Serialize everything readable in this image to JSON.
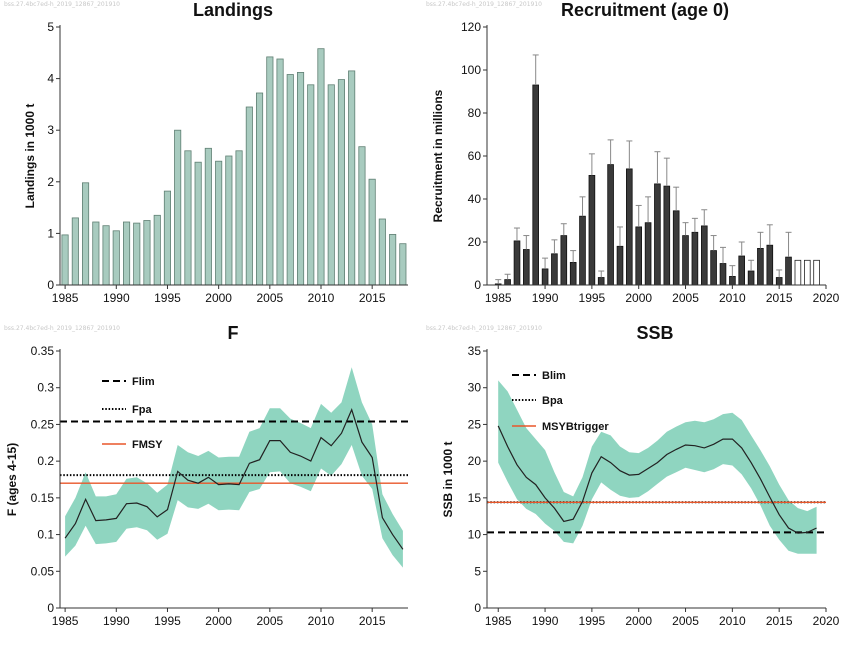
{
  "watermarks": {
    "w1": "bss.27.4bc7ed-h_2019_12867_201910",
    "w2": "bss.27.4bc7ed-h_2019_12867_201910",
    "w3": "bss.27.4bc7ed-h_2019_12867_201910",
    "w4": "bss.27.4bc7ed-h_2019_12867_201910"
  },
  "chart_data": [
    {
      "type": "bar",
      "title": "Landings",
      "xlabel": "",
      "ylabel": "Landings in 1000 t",
      "ylim": [
        0,
        5
      ],
      "yticks": [
        "0",
        "1",
        "2",
        "3",
        "4",
        "5"
      ],
      "xticks": [
        "1985",
        "1990",
        "1995",
        "2000",
        "2005",
        "2010",
        "2015"
      ],
      "color": "#a8cbbf",
      "x": [
        1985,
        1986,
        1987,
        1988,
        1989,
        1990,
        1991,
        1992,
        1993,
        1994,
        1995,
        1996,
        1997,
        1998,
        1999,
        2000,
        2001,
        2002,
        2003,
        2004,
        2005,
        2006,
        2007,
        2008,
        2009,
        2010,
        2011,
        2012,
        2013,
        2014,
        2015,
        2016,
        2017,
        2018
      ],
      "values": [
        0.97,
        1.3,
        1.98,
        1.22,
        1.15,
        1.05,
        1.22,
        1.2,
        1.25,
        1.35,
        1.82,
        3.0,
        2.6,
        2.38,
        2.65,
        2.4,
        2.5,
        2.6,
        3.45,
        3.72,
        4.42,
        4.38,
        4.08,
        4.12,
        3.88,
        4.58,
        3.88,
        3.98,
        4.15,
        2.68,
        2.05,
        1.28,
        0.98,
        0.8
      ]
    },
    {
      "type": "bar",
      "title": "Recruitment (age 0)",
      "xlabel": "",
      "ylabel": "Recruitment in millions",
      "ylim": [
        0,
        120
      ],
      "yticks": [
        "0",
        "20",
        "40",
        "60",
        "80",
        "100",
        "120"
      ],
      "xticks": [
        "1985",
        "1990",
        "1995",
        "2000",
        "2005",
        "2010",
        "2015",
        "2020"
      ],
      "color": "#3a3a3a",
      "x": [
        1985,
        1986,
        1987,
        1988,
        1989,
        1990,
        1991,
        1992,
        1993,
        1994,
        1995,
        1996,
        1997,
        1998,
        1999,
        2000,
        2001,
        2002,
        2003,
        2004,
        2005,
        2006,
        2007,
        2008,
        2009,
        2010,
        2011,
        2012,
        2013,
        2014,
        2015,
        2016,
        2017,
        2018,
        2019
      ],
      "values": [
        0.5,
        2.5,
        20.5,
        16.5,
        93,
        7.5,
        14.5,
        23,
        10.5,
        32,
        51,
        3.5,
        56,
        18,
        54,
        27,
        29,
        47,
        46,
        34.5,
        23,
        24.5,
        27.5,
        16,
        10,
        4,
        13.5,
        6.5,
        17,
        18.5,
        3.5,
        13,
        11.5,
        11.5,
        11.5
      ],
      "upper": [
        2.5,
        5,
        26.5,
        23,
        107,
        12.5,
        21,
        28.5,
        16,
        41,
        61,
        6.5,
        67.5,
        27,
        67,
        37,
        41,
        62,
        59,
        45.5,
        29,
        31,
        35,
        23,
        17.5,
        9,
        20,
        11.5,
        24.5,
        28,
        7,
        24.5,
        null,
        null,
        null
      ],
      "assumed": [
        false,
        false,
        false,
        false,
        false,
        false,
        false,
        false,
        false,
        false,
        false,
        false,
        false,
        false,
        false,
        false,
        false,
        false,
        false,
        false,
        false,
        false,
        false,
        false,
        false,
        false,
        false,
        false,
        false,
        false,
        false,
        false,
        true,
        true,
        true
      ]
    },
    {
      "type": "line",
      "title": "F",
      "xlabel": "",
      "ylabel": "F (ages 4-15)",
      "ylim": [
        0,
        0.35
      ],
      "yticks": [
        "0",
        "0.05",
        "0.1",
        "0.15",
        "0.2",
        "0.25",
        "0.3",
        "0.35"
      ],
      "xticks": [
        "1985",
        "1990",
        "1995",
        "2000",
        "2005",
        "2010",
        "2015"
      ],
      "band_color": "#8fd5c0",
      "x": [
        1985,
        1986,
        1987,
        1988,
        1989,
        1990,
        1991,
        1992,
        1993,
        1994,
        1995,
        1996,
        1997,
        1998,
        1999,
        2000,
        2001,
        2002,
        2003,
        2004,
        2005,
        2006,
        2007,
        2008,
        2009,
        2010,
        2011,
        2012,
        2013,
        2014,
        2015,
        2016,
        2017,
        2018
      ],
      "series": [
        {
          "values": [
            0.095,
            0.115,
            0.148,
            0.119,
            0.12,
            0.122,
            0.142,
            0.143,
            0.138,
            0.124,
            0.134,
            0.186,
            0.174,
            0.17,
            0.178,
            0.168,
            0.169,
            0.168,
            0.197,
            0.202,
            0.228,
            0.228,
            0.212,
            0.207,
            0.2,
            0.232,
            0.221,
            0.238,
            0.27,
            0.226,
            0.205,
            0.123,
            0.1,
            0.08
          ]
        }
      ],
      "band_upper": [
        0.125,
        0.15,
        0.185,
        0.152,
        0.152,
        0.155,
        0.176,
        0.178,
        0.17,
        0.157,
        0.168,
        0.222,
        0.212,
        0.207,
        0.214,
        0.205,
        0.206,
        0.206,
        0.24,
        0.245,
        0.272,
        0.272,
        0.258,
        0.252,
        0.245,
        0.278,
        0.266,
        0.28,
        0.328,
        0.28,
        0.25,
        0.155,
        0.128,
        0.105
      ],
      "band_lower": [
        0.07,
        0.085,
        0.112,
        0.087,
        0.088,
        0.09,
        0.108,
        0.11,
        0.106,
        0.093,
        0.101,
        0.147,
        0.137,
        0.135,
        0.142,
        0.133,
        0.134,
        0.133,
        0.158,
        0.162,
        0.185,
        0.186,
        0.17,
        0.165,
        0.159,
        0.19,
        0.18,
        0.196,
        0.222,
        0.18,
        0.162,
        0.095,
        0.072,
        0.055
      ],
      "refs": [
        {
          "name": "Flim",
          "value": 0.254,
          "style": "dashed",
          "color": "#000000"
        },
        {
          "name": "Fpa",
          "value": 0.181,
          "style": "dotted",
          "color": "#000000"
        },
        {
          "name": "FMSY",
          "value": 0.17,
          "style": "solid",
          "color": "#e8562a"
        }
      ]
    },
    {
      "type": "line",
      "title": "SSB",
      "xlabel": "",
      "ylabel": "SSB in 1000 t",
      "ylim": [
        0,
        35
      ],
      "yticks": [
        "0",
        "5",
        "10",
        "15",
        "20",
        "25",
        "30",
        "35"
      ],
      "xticks": [
        "1985",
        "1990",
        "1995",
        "2000",
        "2005",
        "2010",
        "2015",
        "2020"
      ],
      "band_color": "#8fd5c0",
      "x": [
        1985,
        1986,
        1987,
        1988,
        1989,
        1990,
        1991,
        1992,
        1993,
        1994,
        1995,
        1996,
        1997,
        1998,
        1999,
        2000,
        2001,
        2002,
        2003,
        2004,
        2005,
        2006,
        2007,
        2008,
        2009,
        2010,
        2011,
        2012,
        2013,
        2014,
        2015,
        2016,
        2017,
        2018,
        2019
      ],
      "series": [
        {
          "values": [
            24.8,
            22,
            19.5,
            17.8,
            16.8,
            15,
            13.6,
            11.8,
            12.1,
            14.5,
            18.4,
            20.6,
            19.8,
            18.7,
            18.1,
            18.2,
            19,
            19.8,
            20.9,
            21.6,
            22.2,
            22.1,
            21.8,
            22.3,
            23,
            23,
            21.8,
            19.8,
            17.6,
            15.1,
            12.7,
            10.9,
            10.2,
            10.3,
            10.9
          ]
        }
      ],
      "band_upper": [
        31,
        29.5,
        27,
        24.5,
        23,
        21.5,
        18.5,
        15.8,
        15.2,
        17.8,
        22,
        24,
        23.5,
        22,
        21.2,
        21.1,
        21.8,
        22.8,
        24,
        24.7,
        25.3,
        25.5,
        25.3,
        25.7,
        26.4,
        26.6,
        25.6,
        23.5,
        21.5,
        19.3,
        16.8,
        14.7,
        13.6,
        13.2,
        13.8
      ],
      "band_lower": [
        19.8,
        17.2,
        14.8,
        13.5,
        12.8,
        11.5,
        10.5,
        9,
        8.8,
        11.2,
        14.8,
        17.1,
        16.1,
        15.3,
        15,
        15.1,
        15.9,
        16.9,
        17.9,
        18.5,
        19.1,
        18.8,
        18.5,
        18.9,
        19.6,
        19.4,
        18.2,
        16.3,
        14,
        11.2,
        9.3,
        7.8,
        7.4,
        7.4,
        7.4
      ],
      "refs": [
        {
          "name": "Blim",
          "value": 10.3,
          "style": "dashed",
          "color": "#000000"
        },
        {
          "name": "Bpa",
          "value": 14.4,
          "style": "dotted",
          "color": "#000000"
        },
        {
          "name": "MSYBtrigger",
          "value": 14.4,
          "style": "solid",
          "color": "#e8562a"
        }
      ]
    }
  ]
}
